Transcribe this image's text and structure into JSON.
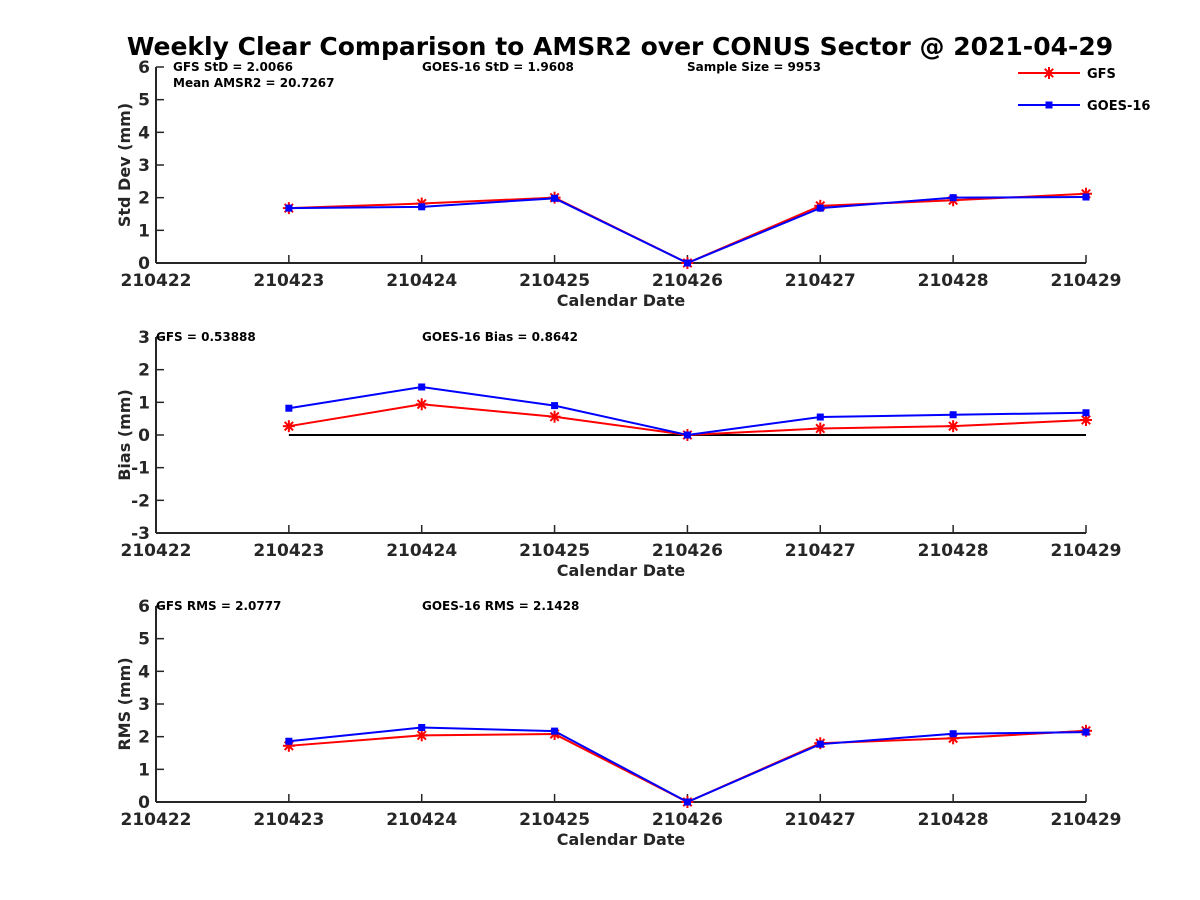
{
  "title": "Weekly Clear Comparison to AMSR2 over CONUS Sector @ 2021-04-29",
  "colors": {
    "gfs": "#ff0000",
    "goes": "#0000ff",
    "axis": "#262626",
    "zero_line": "#000000"
  },
  "legend": {
    "placement": "top-right",
    "items": [
      {
        "name": "GFS",
        "marker": "asterisk",
        "color": "#ff0000"
      },
      {
        "name": "GOES-16",
        "marker": "square",
        "color": "#0000ff"
      }
    ]
  },
  "chart_data": [
    {
      "type": "line",
      "id": "stddev",
      "ylabel": "Std Dev (mm)",
      "xlabel": "Calendar Date",
      "categories": [
        "210422",
        "210423",
        "210424",
        "210425",
        "210426",
        "210427",
        "210428",
        "210429"
      ],
      "ylim": [
        0,
        6
      ],
      "yticks": [
        "0",
        "1",
        "2",
        "3",
        "4",
        "5",
        "6"
      ],
      "annotations": [
        "GFS StD = 2.0066",
        "GOES-16 StD = 1.9608",
        "Sample Size = 9953",
        "Mean AMSR2 = 20.7267"
      ],
      "zero_line": false,
      "series": [
        {
          "name": "GFS",
          "values": [
            null,
            1.68,
            1.82,
            2.0,
            0.0,
            1.75,
            1.92,
            2.12
          ]
        },
        {
          "name": "GOES-16",
          "values": [
            null,
            1.68,
            1.72,
            1.98,
            0.0,
            1.68,
            2.0,
            2.02
          ]
        }
      ]
    },
    {
      "type": "line",
      "id": "bias",
      "ylabel": "Bias (mm)",
      "xlabel": "Calendar Date",
      "categories": [
        "210422",
        "210423",
        "210424",
        "210425",
        "210426",
        "210427",
        "210428",
        "210429"
      ],
      "ylim": [
        -3,
        3
      ],
      "yticks": [
        "-3",
        "-2",
        "-1",
        "0",
        "1",
        "2",
        "3"
      ],
      "annotations": [
        "GFS = 0.53888",
        "GOES-16 Bias  = 0.8642"
      ],
      "zero_line": true,
      "series": [
        {
          "name": "GFS",
          "values": [
            null,
            0.27,
            0.94,
            0.56,
            0.0,
            0.2,
            0.27,
            0.46
          ]
        },
        {
          "name": "GOES-16",
          "values": [
            null,
            0.82,
            1.47,
            0.9,
            0.0,
            0.55,
            0.62,
            0.68
          ]
        }
      ]
    },
    {
      "type": "line",
      "id": "rms",
      "ylabel": "RMS (mm)",
      "xlabel": "Calendar Date",
      "categories": [
        "210422",
        "210423",
        "210424",
        "210425",
        "210426",
        "210427",
        "210428",
        "210429"
      ],
      "ylim": [
        0,
        6
      ],
      "yticks": [
        "0",
        "1",
        "2",
        "3",
        "4",
        "5",
        "6"
      ],
      "annotations": [
        "GFS RMS = 2.0777",
        "GOES-16 RMS = 2.1428"
      ],
      "zero_line": false,
      "series": [
        {
          "name": "GFS",
          "values": [
            null,
            1.72,
            2.04,
            2.08,
            0.0,
            1.8,
            1.95,
            2.18
          ]
        },
        {
          "name": "GOES-16",
          "values": [
            null,
            1.86,
            2.28,
            2.17,
            0.0,
            1.77,
            2.09,
            2.14
          ]
        }
      ]
    }
  ]
}
